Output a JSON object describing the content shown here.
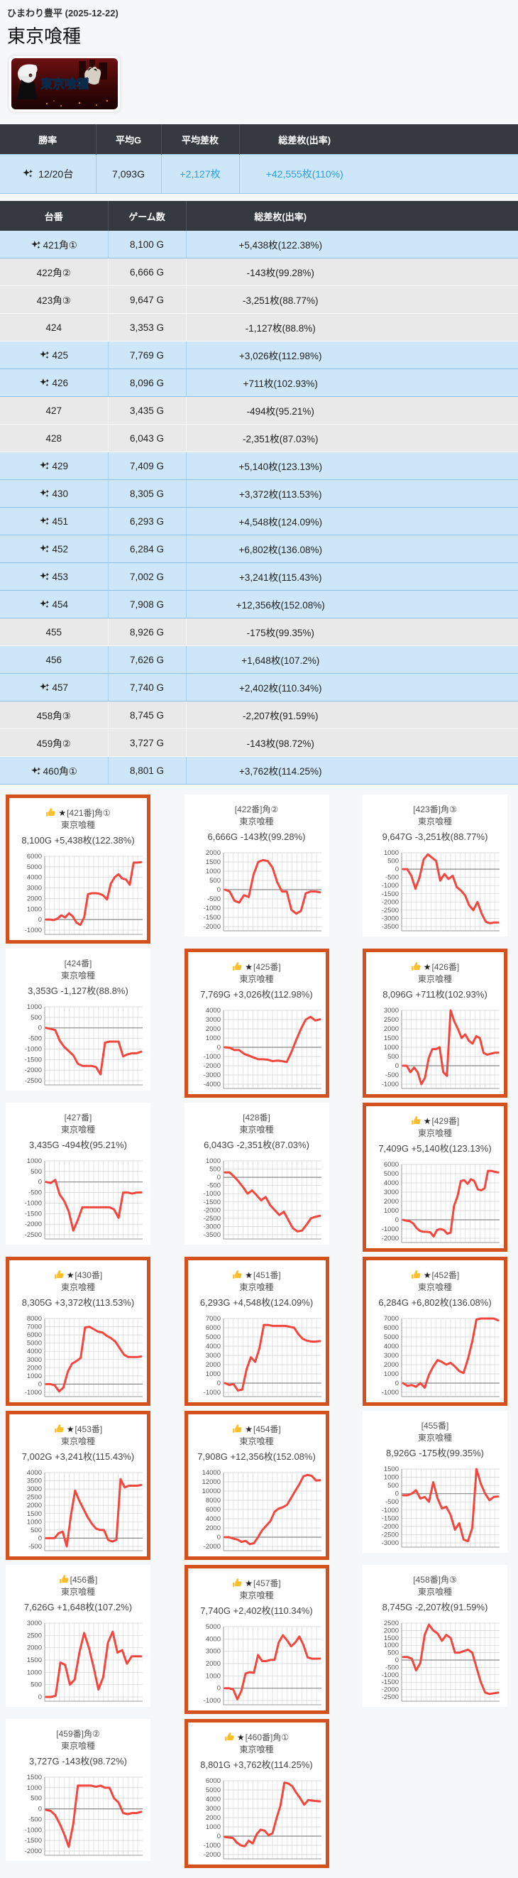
{
  "header": {
    "venue_date": "ひまわり豊平 (2025-12-22)",
    "title": "東京喰種",
    "banner_text": "東京喰種"
  },
  "labels": {
    "machine_suffix": "番"
  },
  "summary": {
    "columns": [
      "勝率",
      "平均G",
      "平均差枚",
      "総差枚(出率)"
    ],
    "win_rate": "12/20台",
    "avg_g": "7,093G",
    "avg_diff": "+2,127枚",
    "total_diff": "+42,555枚(110%)"
  },
  "table": {
    "columns": [
      "台番",
      "ゲーム数",
      "総差枚(出率)"
    ]
  },
  "colors": {
    "header_bg": "#343a40",
    "row_positive": "#cde6f8",
    "row_negative": "#e9e9e9",
    "value_blue": "#2b9fe2",
    "highlight_border": "#d4511d",
    "line": "#f4463d"
  },
  "machines": [
    {
      "no": "421",
      "pos": "角①",
      "star": true,
      "positive": true,
      "games": "8,100 G",
      "diff": "+5,438枚(122.38%)",
      "chart": {
        "type": "line",
        "ylim": [
          -1000,
          6000
        ],
        "step": 1000,
        "points": [
          0,
          0,
          -50,
          100,
          400,
          200,
          600,
          300,
          -300,
          -500,
          200,
          2400,
          2500,
          2500,
          2450,
          2300,
          1900,
          3400,
          4000,
          4300,
          3900,
          3800,
          3300,
          5400,
          5400,
          5438
        ]
      }
    },
    {
      "no": "422",
      "pos": "角②",
      "star": false,
      "positive": false,
      "games": "6,666 G",
      "diff": "-143枚(99.28%)",
      "chart": {
        "type": "line",
        "ylim": [
          -2000,
          2000
        ],
        "step": 500,
        "points": [
          0,
          -100,
          -600,
          -700,
          -300,
          -400,
          800,
          1500,
          1600,
          1550,
          1200,
          400,
          -100,
          -100,
          -1100,
          -1300,
          -1150,
          -200,
          -100,
          -100,
          -143
        ]
      }
    },
    {
      "no": "423",
      "pos": "角③",
      "star": false,
      "positive": false,
      "games": "9,647 G",
      "diff": "-3,251枚(88.77%)",
      "chart": {
        "type": "line",
        "ylim": [
          -3500,
          1000
        ],
        "step": 500,
        "points": [
          0,
          0,
          -400,
          -1200,
          -500,
          600,
          900,
          700,
          500,
          -700,
          -300,
          -600,
          -400,
          -1100,
          -1300,
          -1600,
          -2200,
          -2500,
          -2000,
          -2700,
          -3200,
          -3300,
          -3250,
          -3251
        ]
      }
    },
    {
      "no": "424",
      "pos": "",
      "star": false,
      "positive": false,
      "games": "3,353 G",
      "diff": "-1,127枚(88.8%)",
      "chart": {
        "type": "line",
        "ylim": [
          -2500,
          1000
        ],
        "step": 500,
        "points": [
          0,
          -50,
          -100,
          -600,
          -900,
          -1100,
          -1300,
          -1700,
          -1800,
          -1800,
          -1800,
          -1850,
          -2200,
          -700,
          -650,
          -650,
          -650,
          -1350,
          -1250,
          -1200,
          -1200,
          -1127
        ]
      }
    },
    {
      "no": "425",
      "pos": "",
      "star": true,
      "positive": true,
      "games": "7,769 G",
      "diff": "+3,026枚(112.98%)",
      "chart": {
        "type": "line",
        "ylim": [
          -4000,
          4000
        ],
        "step": 1000,
        "points": [
          0,
          -50,
          -300,
          -300,
          -700,
          -900,
          -1100,
          -1300,
          -1300,
          -1350,
          -1500,
          -1450,
          -1500,
          -1600,
          -500,
          800,
          2000,
          3000,
          3300,
          2900,
          3026
        ]
      }
    },
    {
      "no": "426",
      "pos": "",
      "star": true,
      "positive": true,
      "games": "8,096 G",
      "diff": "+711枚(102.93%)",
      "chart": {
        "type": "line",
        "ylim": [
          -1000,
          3000
        ],
        "step": 500,
        "points": [
          0,
          0,
          -350,
          -100,
          -350,
          -1000,
          -650,
          400,
          900,
          900,
          1000,
          -350,
          -550,
          3000,
          2400,
          2000,
          1500,
          1700,
          1350,
          1200,
          1600,
          1500,
          700,
          600,
          650,
          700,
          711
        ]
      }
    },
    {
      "no": "427",
      "pos": "",
      "star": false,
      "positive": false,
      "games": "3,435 G",
      "diff": "-494枚(95.21%)",
      "chart": {
        "type": "line",
        "ylim": [
          -2500,
          1000
        ],
        "step": 500,
        "points": [
          0,
          -50,
          100,
          -600,
          -900,
          -1400,
          -2300,
          -1800,
          -1200,
          -1200,
          -1200,
          -1200,
          -1200,
          -1200,
          -1200,
          -1300,
          -1700,
          -500,
          -500,
          -550,
          -500,
          -494
        ]
      }
    },
    {
      "no": "428",
      "pos": "",
      "star": false,
      "positive": false,
      "games": "6,043 G",
      "diff": "-2,351枚(87.03%)",
      "chart": {
        "type": "line",
        "ylim": [
          -3500,
          1000
        ],
        "step": 500,
        "points": [
          300,
          300,
          50,
          -250,
          -600,
          -1000,
          -800,
          -1100,
          -1400,
          -1200,
          -1700,
          -2000,
          -2300,
          -2100,
          -2600,
          -3100,
          -3300,
          -3250,
          -2900,
          -2500,
          -2400,
          -2351
        ]
      }
    },
    {
      "no": "429",
      "pos": "",
      "star": true,
      "positive": true,
      "games": "7,409 G",
      "diff": "+5,140枚(123.13%)",
      "chart": {
        "type": "line",
        "ylim": [
          -2000,
          6000
        ],
        "step": 1000,
        "points": [
          0,
          -100,
          -150,
          -400,
          -900,
          -1200,
          -1300,
          -1300,
          -1350,
          -1800,
          -1100,
          -1000,
          -1100,
          -1500,
          -1400,
          1500,
          2500,
          4200,
          4300,
          3900,
          4400,
          4200,
          3300,
          3200,
          3400,
          5300,
          5300,
          5200,
          5140
        ]
      }
    },
    {
      "no": "430",
      "pos": "",
      "star": true,
      "positive": true,
      "games": "8,305 G",
      "diff": "+3,372枚(113.53%)",
      "chart": {
        "type": "line",
        "ylim": [
          -1000,
          8000
        ],
        "step": 1000,
        "points": [
          0,
          0,
          -150,
          -900,
          -400,
          1500,
          2500,
          2800,
          3200,
          6900,
          7000,
          6700,
          6400,
          6300,
          5900,
          5600,
          5200,
          4400,
          3600,
          3300,
          3300,
          3300,
          3372
        ]
      }
    },
    {
      "no": "451",
      "pos": "",
      "star": true,
      "positive": true,
      "games": "6,293 G",
      "diff": "+4,548枚(124.09%)",
      "chart": {
        "type": "line",
        "ylim": [
          -1000,
          7000
        ],
        "step": 1000,
        "points": [
          0,
          -200,
          -100,
          -800,
          -700,
          1500,
          2800,
          2300,
          3800,
          6300,
          6300,
          6200,
          6200,
          6200,
          6200,
          6100,
          6000,
          5300,
          4800,
          4600,
          4500,
          4500,
          4548
        ]
      }
    },
    {
      "no": "452",
      "pos": "",
      "star": true,
      "positive": true,
      "games": "6,284 G",
      "diff": "+6,802枚(136.08%)",
      "chart": {
        "type": "line",
        "ylim": [
          -1000,
          7000
        ],
        "step": 1000,
        "points": [
          0,
          -300,
          -200,
          -400,
          0,
          -500,
          900,
          1800,
          2500,
          2300,
          2000,
          2200,
          1800,
          1300,
          1100,
          2600,
          4500,
          6900,
          7000,
          7000,
          7000,
          7000,
          6802
        ]
      }
    },
    {
      "no": "453",
      "pos": "",
      "star": true,
      "positive": true,
      "games": "7,002 G",
      "diff": "+3,241枚(115.43%)",
      "chart": {
        "type": "line",
        "ylim": [
          -500,
          4000
        ],
        "step": 500,
        "points": [
          0,
          0,
          0,
          300,
          400,
          -500,
          1400,
          2900,
          2300,
          1800,
          1300,
          900,
          600,
          500,
          500,
          -100,
          -200,
          -100,
          3600,
          3100,
          3200,
          3200,
          3200,
          3241
        ]
      }
    },
    {
      "no": "454",
      "pos": "",
      "star": true,
      "positive": true,
      "games": "7,908 G",
      "diff": "+12,356枚(152.08%)",
      "chart": {
        "type": "line",
        "ylim": [
          -2000,
          14000
        ],
        "step": 2000,
        "points": [
          0,
          0,
          -300,
          -500,
          -1000,
          -800,
          -1500,
          -1300,
          0,
          1500,
          2500,
          3500,
          5500,
          6200,
          6500,
          7000,
          8500,
          10000,
          11500,
          13200,
          13500,
          13300,
          12300,
          12356
        ]
      }
    },
    {
      "no": "455",
      "pos": "",
      "star": false,
      "positive": false,
      "games": "8,926 G",
      "diff": "-175枚(99.35%)",
      "chart": {
        "type": "line",
        "ylim": [
          -3000,
          1500
        ],
        "step": 500,
        "points": [
          -100,
          -100,
          0,
          200,
          -300,
          -200,
          -500,
          700,
          -300,
          -900,
          -800,
          -1300,
          -2200,
          -1800,
          -2800,
          -2900,
          -2100,
          1500,
          600,
          0,
          -400,
          -200,
          -175
        ]
      }
    },
    {
      "no": "456",
      "pos": "",
      "star": false,
      "positive": true,
      "games": "7,626 G",
      "diff": "+1,648枚(107.2%)",
      "chart": {
        "type": "line",
        "ylim": [
          0,
          3000
        ],
        "step": 500,
        "points": [
          0,
          0,
          50,
          1400,
          1300,
          500,
          700,
          1800,
          2600,
          2000,
          1200,
          300,
          800,
          2200,
          2650,
          1800,
          1900,
          1350,
          1650,
          1650,
          1648
        ]
      }
    },
    {
      "no": "457",
      "pos": "",
      "star": true,
      "positive": true,
      "games": "7,740 G",
      "diff": "+2,402枚(110.34%)",
      "chart": {
        "type": "line",
        "ylim": [
          -1000,
          5000
        ],
        "step": 1000,
        "points": [
          0,
          0,
          -100,
          -900,
          -200,
          1200,
          1300,
          1250,
          2700,
          2200,
          2200,
          2300,
          2300,
          3700,
          4300,
          3900,
          3400,
          3700,
          4200,
          3500,
          2500,
          2400,
          2400,
          2402
        ]
      }
    },
    {
      "no": "458",
      "pos": "角③",
      "star": false,
      "positive": false,
      "games": "8,745 G",
      "diff": "-2,207枚(91.59%)",
      "chart": {
        "type": "line",
        "ylim": [
          -2500,
          2500
        ],
        "step": 500,
        "points": [
          200,
          200,
          100,
          -700,
          -200,
          1700,
          2400,
          2000,
          1800,
          1300,
          1700,
          1500,
          500,
          500,
          600,
          700,
          500,
          -500,
          -1500,
          -2200,
          -2300,
          -2250,
          -2207
        ]
      }
    },
    {
      "no": "459",
      "pos": "角②",
      "star": false,
      "positive": false,
      "games": "3,727 G",
      "diff": "-143枚(98.72%)",
      "chart": {
        "type": "line",
        "ylim": [
          -2000,
          1500
        ],
        "step": 500,
        "points": [
          -50,
          -100,
          -300,
          -700,
          -1200,
          -1800,
          -700,
          1100,
          1100,
          1100,
          1100,
          1050,
          1100,
          1000,
          1000,
          500,
          300,
          -200,
          -250,
          -200,
          -200,
          -143
        ]
      }
    },
    {
      "no": "460",
      "pos": "角①",
      "star": true,
      "positive": true,
      "games": "8,801 G",
      "diff": "+3,762枚(114.25%)",
      "chart": {
        "type": "line",
        "ylim": [
          -2000,
          6000
        ],
        "step": 1000,
        "points": [
          -100,
          -150,
          -200,
          -700,
          -1000,
          -1100,
          -500,
          -800,
          200,
          700,
          600,
          100,
          300,
          1900,
          3300,
          5800,
          5700,
          5400,
          4700,
          4100,
          3400,
          3900,
          3850,
          3800,
          3762
        ]
      }
    }
  ]
}
